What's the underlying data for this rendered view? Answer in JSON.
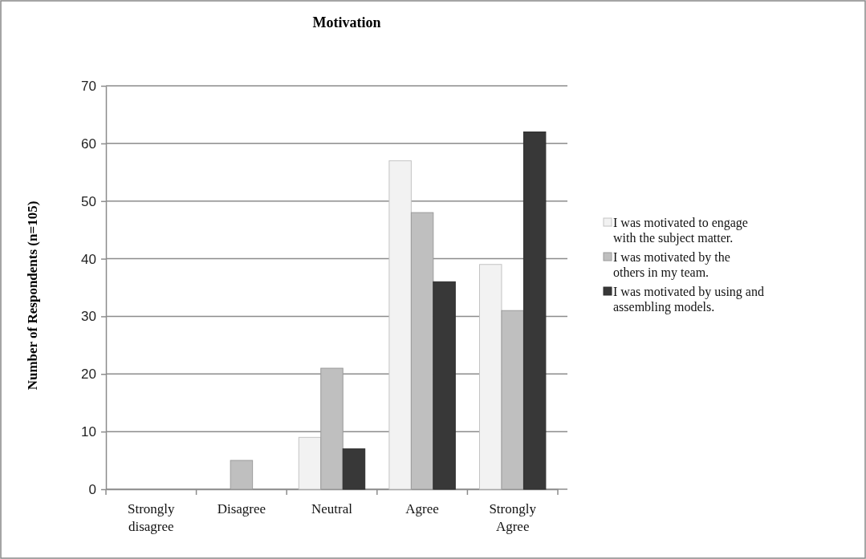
{
  "chart_data": {
    "type": "bar",
    "title": "Motivation",
    "ylabel": "Number of Respondents (n=105)",
    "categories": [
      "Strongly disagree",
      "Disagree",
      "Neutral",
      "Agree",
      "Strongly Agree"
    ],
    "series": [
      {
        "name": "I was motivated to engage with the subject matter.",
        "color": "#f2f2f2",
        "values": [
          0,
          0,
          9,
          57,
          39
        ]
      },
      {
        "name": "I was motivated by the others in my team.",
        "color": "#bfbfbf",
        "values": [
          0,
          5,
          21,
          48,
          31
        ]
      },
      {
        "name": "I was motivated by using and assembling models.",
        "color": "#383838",
        "values": [
          0,
          0,
          7,
          36,
          62
        ]
      }
    ],
    "ylim": [
      0,
      70
    ],
    "yticks": [
      0,
      10,
      20,
      30,
      40,
      50,
      60,
      70
    ],
    "grid": "y",
    "legend": "right"
  }
}
